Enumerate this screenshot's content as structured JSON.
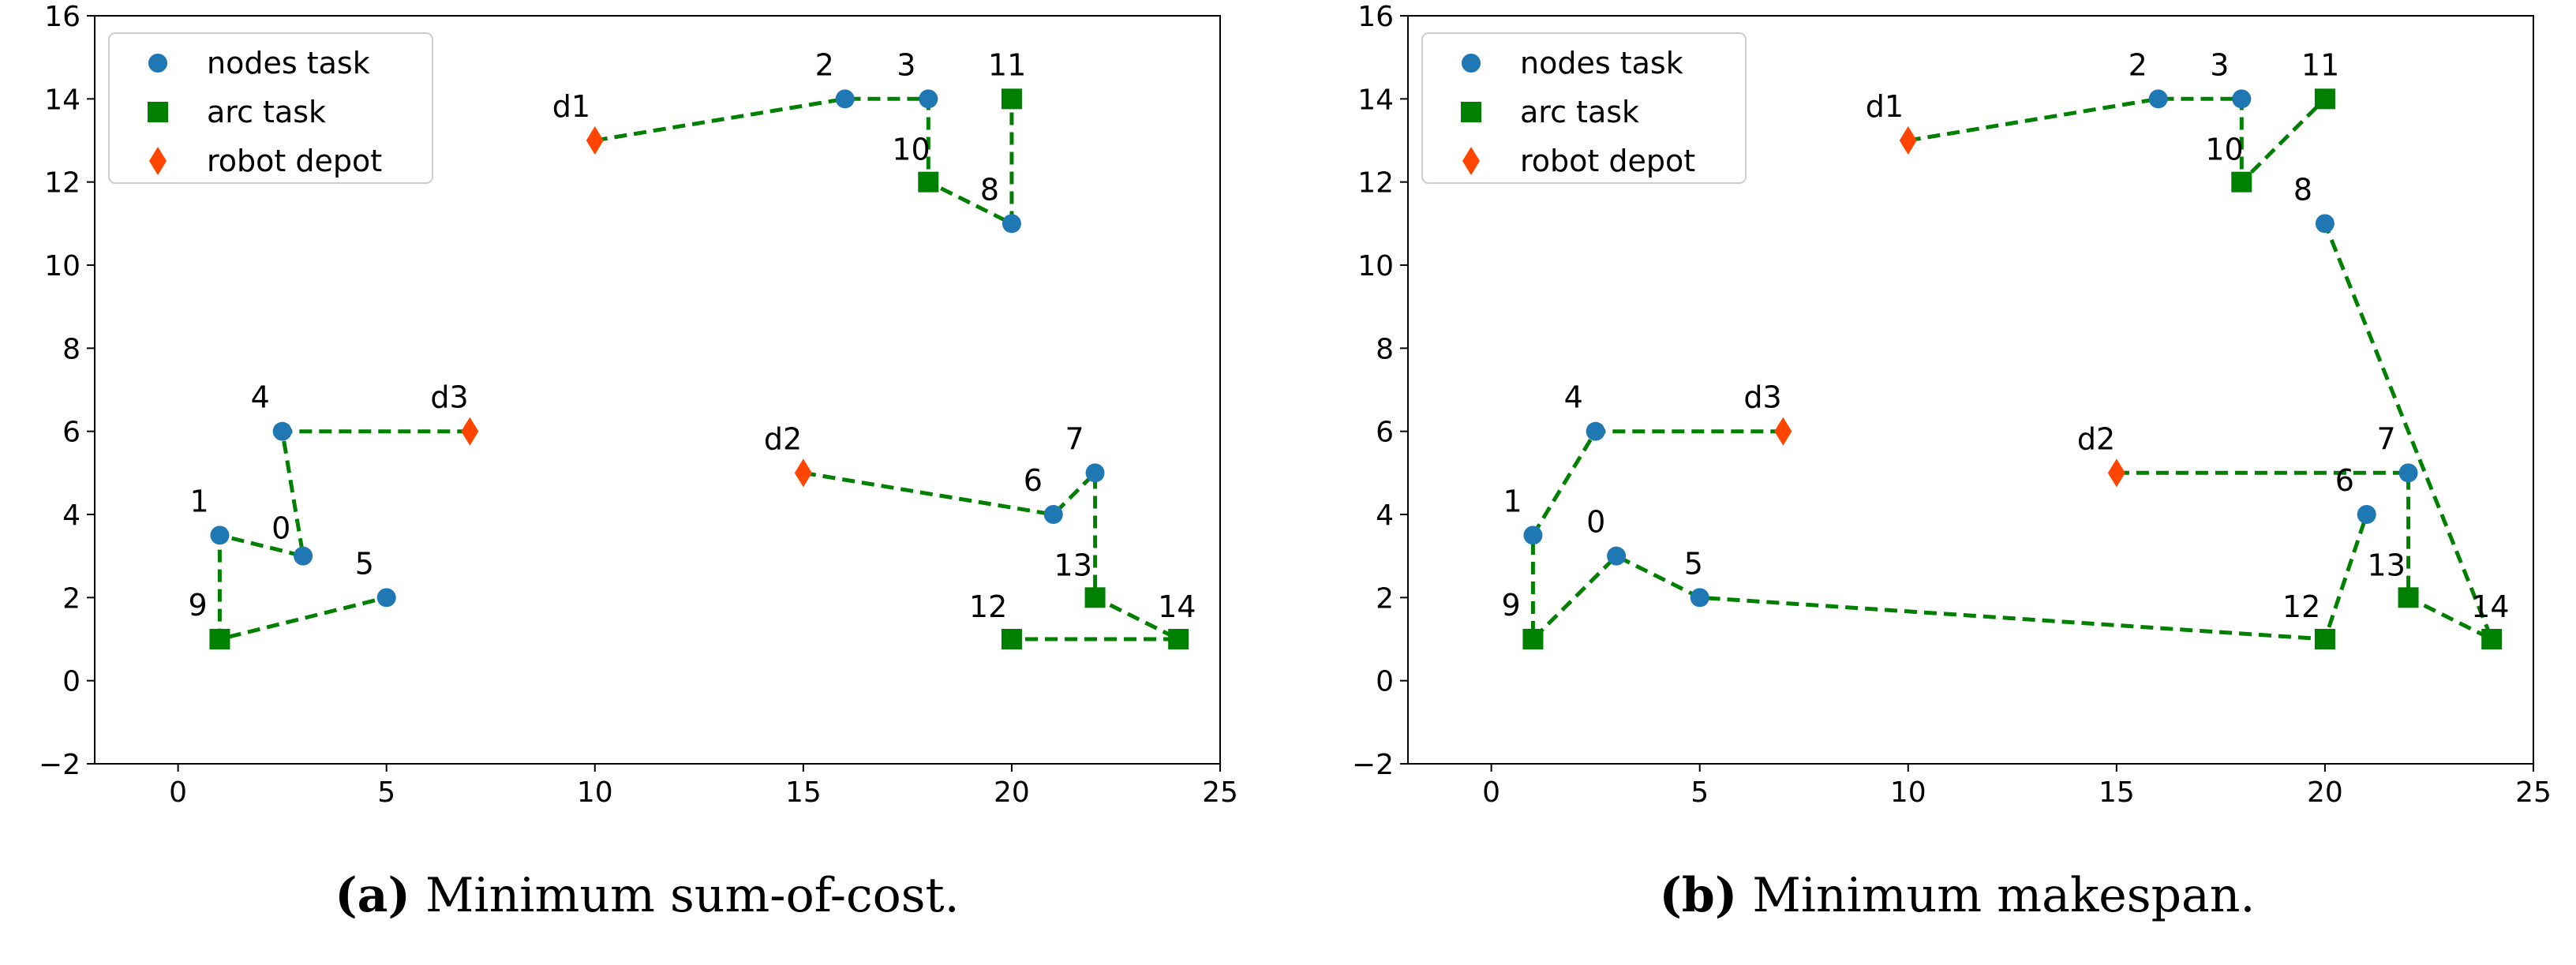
{
  "chart_data": [
    {
      "type": "scatter",
      "caption_letter": "(a)",
      "caption_text": "Minimum sum-of-cost.",
      "xlim": [
        -2,
        25
      ],
      "ylim": [
        -2,
        16
      ],
      "xticks": [
        0,
        5,
        10,
        15,
        20,
        25
      ],
      "yticks": [
        -2,
        0,
        2,
        4,
        6,
        8,
        10,
        12,
        14,
        16
      ],
      "grid": false,
      "legend_position": "top-left",
      "legend": [
        "nodes task",
        "arc task",
        "robot depot"
      ],
      "colors": {
        "node": "#1f77b4",
        "arc": "#008000",
        "depot": "#ff4500",
        "route": "#008000"
      },
      "node_tasks": [
        {
          "label": "0",
          "x": 3,
          "y": 3
        },
        {
          "label": "1",
          "x": 1,
          "y": 3.5
        },
        {
          "label": "2",
          "x": 16,
          "y": 14
        },
        {
          "label": "3",
          "x": 18,
          "y": 14
        },
        {
          "label": "4",
          "x": 2.5,
          "y": 6
        },
        {
          "label": "5",
          "x": 5,
          "y": 2
        },
        {
          "label": "6",
          "x": 21,
          "y": 4
        },
        {
          "label": "7",
          "x": 22,
          "y": 5
        },
        {
          "label": "8",
          "x": 20,
          "y": 11
        }
      ],
      "arc_tasks": [
        {
          "label": "9",
          "x": 1,
          "y": 1
        },
        {
          "label": "10",
          "x": 18,
          "y": 12
        },
        {
          "label": "11",
          "x": 20,
          "y": 14
        },
        {
          "label": "12",
          "x": 20,
          "y": 1
        },
        {
          "label": "13",
          "x": 22,
          "y": 2
        },
        {
          "label": "14",
          "x": 24,
          "y": 1
        }
      ],
      "depots": [
        {
          "label": "d1",
          "x": 10,
          "y": 13
        },
        {
          "label": "d2",
          "x": 15,
          "y": 5
        },
        {
          "label": "d3",
          "x": 7,
          "y": 6
        }
      ],
      "routes": [
        [
          [
            10,
            13
          ],
          [
            16,
            14
          ],
          [
            18,
            14
          ],
          [
            18,
            12
          ],
          [
            20,
            11
          ],
          [
            20,
            14
          ]
        ],
        [
          [
            15,
            5
          ],
          [
            21,
            4
          ],
          [
            22,
            5
          ],
          [
            22,
            2
          ],
          [
            24,
            1
          ],
          [
            20,
            1
          ]
        ],
        [
          [
            7,
            6
          ],
          [
            2.5,
            6
          ],
          [
            3,
            3
          ],
          [
            1,
            3.5
          ],
          [
            1,
            1
          ],
          [
            5,
            2
          ]
        ]
      ]
    },
    {
      "type": "scatter",
      "caption_letter": "(b)",
      "caption_text": "Minimum makespan.",
      "xlim": [
        -2,
        25
      ],
      "ylim": [
        -2,
        16
      ],
      "xticks": [
        0,
        5,
        10,
        15,
        20,
        25
      ],
      "yticks": [
        -2,
        0,
        2,
        4,
        6,
        8,
        10,
        12,
        14,
        16
      ],
      "grid": false,
      "legend_position": "top-left",
      "legend": [
        "nodes task",
        "arc task",
        "robot depot"
      ],
      "colors": {
        "node": "#1f77b4",
        "arc": "#008000",
        "depot": "#ff4500",
        "route": "#008000"
      },
      "node_tasks": [
        {
          "label": "0",
          "x": 3,
          "y": 3
        },
        {
          "label": "1",
          "x": 1,
          "y": 3.5
        },
        {
          "label": "2",
          "x": 16,
          "y": 14
        },
        {
          "label": "3",
          "x": 18,
          "y": 14
        },
        {
          "label": "4",
          "x": 2.5,
          "y": 6
        },
        {
          "label": "5",
          "x": 5,
          "y": 2
        },
        {
          "label": "6",
          "x": 21,
          "y": 4
        },
        {
          "label": "7",
          "x": 22,
          "y": 5
        },
        {
          "label": "8",
          "x": 20,
          "y": 11
        }
      ],
      "arc_tasks": [
        {
          "label": "9",
          "x": 1,
          "y": 1
        },
        {
          "label": "10",
          "x": 18,
          "y": 12
        },
        {
          "label": "11",
          "x": 20,
          "y": 14
        },
        {
          "label": "12",
          "x": 20,
          "y": 1
        },
        {
          "label": "13",
          "x": 22,
          "y": 2
        },
        {
          "label": "14",
          "x": 24,
          "y": 1
        }
      ],
      "depots": [
        {
          "label": "d1",
          "x": 10,
          "y": 13
        },
        {
          "label": "d2",
          "x": 15,
          "y": 5
        },
        {
          "label": "d3",
          "x": 7,
          "y": 6
        }
      ],
      "routes": [
        [
          [
            10,
            13
          ],
          [
            16,
            14
          ],
          [
            18,
            14
          ],
          [
            18,
            12
          ],
          [
            20,
            14
          ]
        ],
        [
          [
            15,
            5
          ],
          [
            22,
            5
          ],
          [
            22,
            2
          ],
          [
            24,
            1
          ],
          [
            20,
            11
          ]
        ],
        [
          [
            7,
            6
          ],
          [
            2.5,
            6
          ],
          [
            1,
            3.5
          ],
          [
            1,
            1
          ],
          [
            3,
            3
          ],
          [
            5,
            2
          ],
          [
            20,
            1
          ],
          [
            21,
            4
          ]
        ]
      ]
    }
  ]
}
